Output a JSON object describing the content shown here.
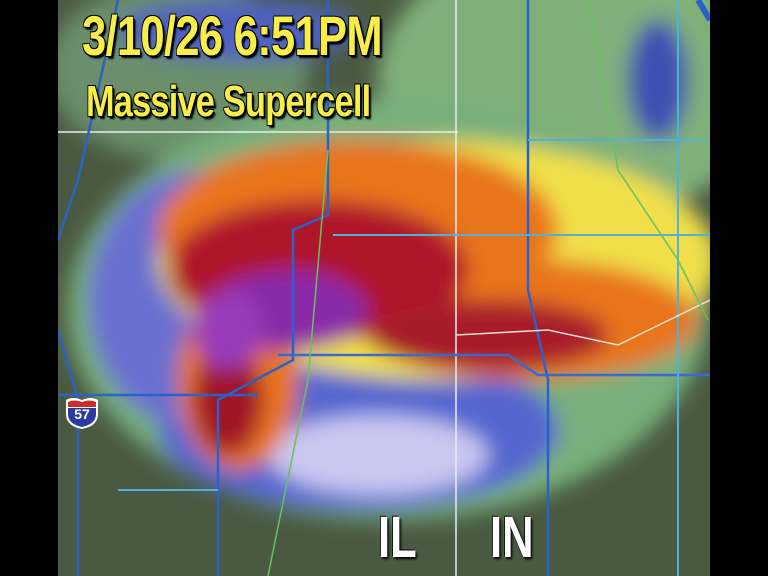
{
  "overlay": {
    "datetime": "3/10/26 6:51PM",
    "headline": "Massive Supercell"
  },
  "map": {
    "type": "weather radar reflectivity",
    "state_labels": [
      "IL",
      "IN"
    ],
    "highway_shield": {
      "route": "57",
      "type": "interstate"
    },
    "colors": {
      "light_precip": "#6fa36a",
      "moderate": "#f2e04a",
      "heavy": "#e8741e",
      "intense": "#b0172a",
      "extreme": "#8a2aa8",
      "hail_core": "#5a50c8",
      "roads": "#3a78d8"
    }
  }
}
